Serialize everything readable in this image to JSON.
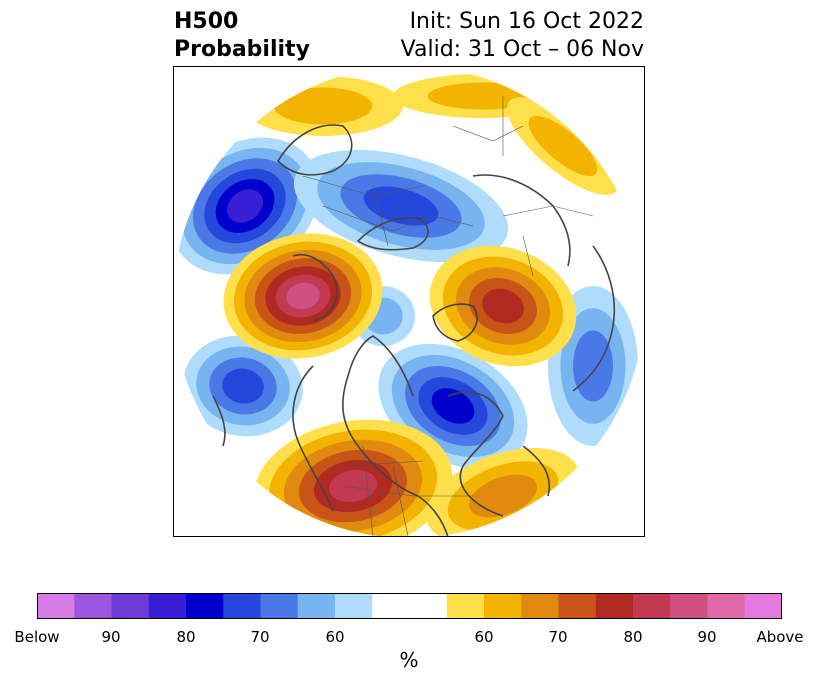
{
  "header": {
    "title_line1": "H500",
    "title_line2": "Probability",
    "init": "Init: Sun 16 Oct 2022",
    "valid": "Valid: 31 Oct – 06 Nov"
  },
  "colorbar": {
    "unit": "%",
    "ticks": [
      "Below",
      "90",
      "80",
      "70",
      "60",
      "60",
      "70",
      "80",
      "90",
      "Above"
    ],
    "colors": [
      "#d67ae6",
      "#9d55e0",
      "#6e3ad8",
      "#3a1ed6",
      "#0000cc",
      "#2448dc",
      "#4a78e6",
      "#78b4f0",
      "#aedcfa",
      "#ffffff",
      "#ffffff",
      "#ffe04a",
      "#f2b400",
      "#e08a10",
      "#c85418",
      "#b02a22",
      "#c23a52",
      "#d05083",
      "#e06aaa",
      "#e47ae0"
    ]
  },
  "map_legend_colors": {
    "below": [
      "#aedcfa",
      "#78b4f0",
      "#4a78e6",
      "#2448dc",
      "#0000cc",
      "#3a1ed6"
    ],
    "above": [
      "#ffe04a",
      "#f2b400",
      "#e08a10",
      "#c85418",
      "#b02a22",
      "#c23a52",
      "#d05083"
    ]
  }
}
